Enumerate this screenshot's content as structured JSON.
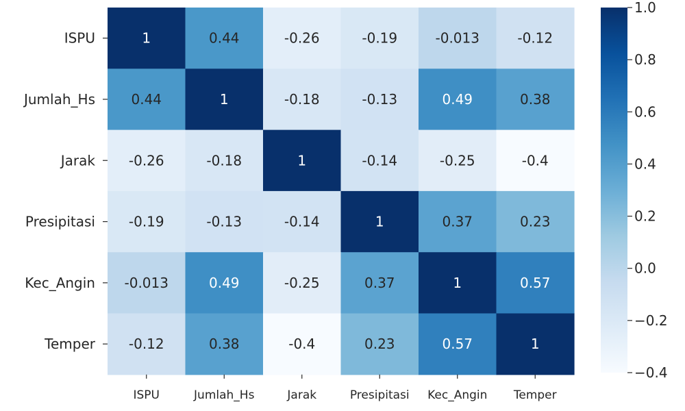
{
  "chart_data": {
    "type": "heatmap",
    "title": "",
    "xlabel": "",
    "ylabel": "",
    "x_categories": [
      "ISPU",
      "Jumlah_Hs",
      "Jarak",
      "Presipitasi",
      "Kec_Angin",
      "Temper"
    ],
    "y_categories": [
      "ISPU",
      "Jumlah_Hs",
      "Jarak",
      "Presipitasi",
      "Kec_Angin",
      "Temper"
    ],
    "values": [
      [
        1,
        0.44,
        -0.26,
        -0.19,
        -0.013,
        -0.12
      ],
      [
        0.44,
        1,
        -0.18,
        -0.13,
        0.49,
        0.38
      ],
      [
        -0.26,
        -0.18,
        1,
        -0.14,
        -0.25,
        -0.4
      ],
      [
        -0.19,
        -0.13,
        -0.14,
        1,
        0.37,
        0.23
      ],
      [
        -0.013,
        0.49,
        -0.25,
        0.37,
        1,
        0.57
      ],
      [
        -0.12,
        0.38,
        -0.4,
        0.23,
        0.57,
        1
      ]
    ],
    "cell_labels": [
      [
        "1",
        "0.44",
        "-0.26",
        "-0.19",
        "-0.013",
        "-0.12"
      ],
      [
        "0.44",
        "1",
        "-0.18",
        "-0.13",
        "0.49",
        "0.38"
      ],
      [
        "-0.26",
        "-0.18",
        "1",
        "-0.14",
        "-0.25",
        "-0.4"
      ],
      [
        "-0.19",
        "-0.13",
        "-0.14",
        "1",
        "0.37",
        "0.23"
      ],
      [
        "-0.013",
        "0.49",
        "-0.25",
        "0.37",
        "1",
        "0.57"
      ],
      [
        "-0.12",
        "0.38",
        "-0.4",
        "0.23",
        "0.57",
        "1"
      ]
    ],
    "colorbar": {
      "vmin": -0.4,
      "vmax": 1.0,
      "ticks": [
        1.0,
        0.8,
        0.6,
        0.4,
        0.2,
        0.0,
        -0.2,
        -0.4
      ],
      "tick_labels": [
        "1.0",
        "0.8",
        "0.6",
        "0.4",
        "0.2",
        "0.0",
        "−0.2",
        "−0.4"
      ]
    },
    "colormap": {
      "name": "Blues",
      "stops": [
        "#f7fbff",
        "#deebf7",
        "#c6dbef",
        "#9ecae1",
        "#6baed6",
        "#4292c6",
        "#2171b5",
        "#08519c",
        "#08306b"
      ]
    },
    "text_colors": {
      "dark": "#262626",
      "light": "#ffffff"
    }
  }
}
